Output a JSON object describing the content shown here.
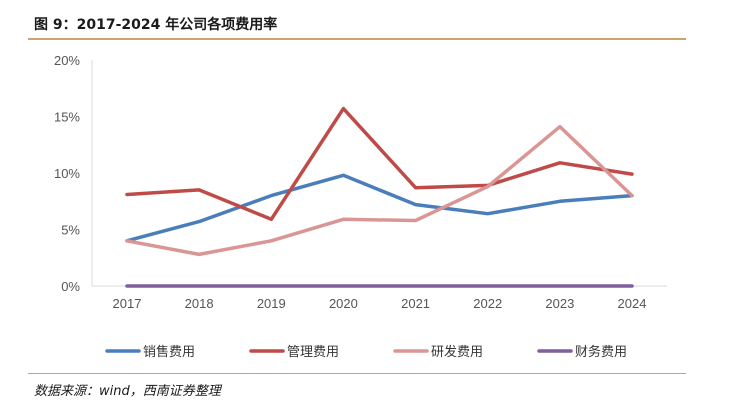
{
  "figure": {
    "title": "图 9：2017-2024 年公司各项费用率",
    "source": "数据来源：wind，西南证券整理"
  },
  "chart_data": {
    "type": "line",
    "title": "2017-2024 年公司各项费用率",
    "xlabel": "",
    "ylabel": "",
    "categories": [
      "2017",
      "2018",
      "2019",
      "2020",
      "2021",
      "2022",
      "2023",
      "2024"
    ],
    "y_ticks": [
      "0%",
      "5%",
      "10%",
      "15%",
      "20%"
    ],
    "ylim": [
      0,
      20
    ],
    "grid": false,
    "legend_position": "bottom",
    "series": [
      {
        "name": "销售费用",
        "color": "#4a7ebb",
        "values": [
          4.0,
          5.7,
          8.0,
          9.8,
          7.2,
          6.4,
          7.5,
          8.0
        ]
      },
      {
        "name": "管理费用",
        "color": "#be4b48",
        "values": [
          8.1,
          8.5,
          5.9,
          15.7,
          8.7,
          8.9,
          10.9,
          9.9
        ]
      },
      {
        "name": "研发费用",
        "color": "#d99694",
        "values": [
          4.0,
          2.8,
          4.0,
          5.9,
          5.8,
          8.8,
          14.1,
          8.0
        ]
      },
      {
        "name": "财务费用",
        "color": "#7f5f9e",
        "values": [
          0.0,
          0.0,
          0.0,
          0.0,
          0.0,
          0.0,
          0.0,
          0.0
        ]
      }
    ]
  }
}
